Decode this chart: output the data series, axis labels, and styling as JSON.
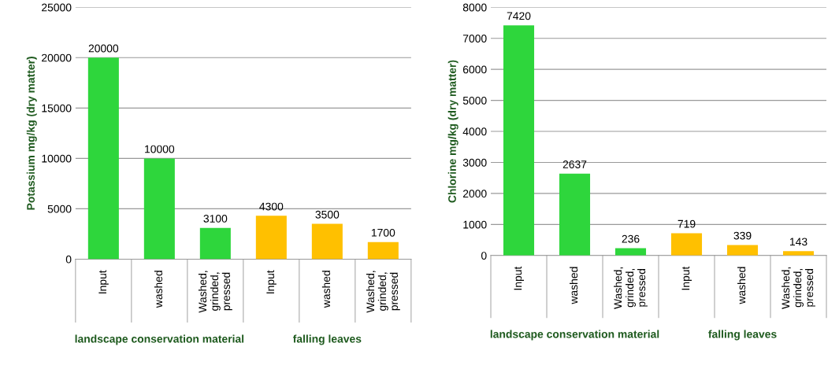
{
  "chart_data": [
    {
      "type": "bar",
      "ylabel": "Potassium mg/kg (dry matter)",
      "categories": [
        "Input",
        "washed",
        "Washed, grinded, pressed",
        "Input",
        "washed",
        "Washed, grinded, pressed"
      ],
      "values": [
        20000,
        10000,
        3100,
        4300,
        3500,
        1700
      ],
      "colors": [
        "#2ed63c",
        "#2ed63c",
        "#2ed63c",
        "#ffc000",
        "#ffc000",
        "#ffc000"
      ],
      "ylim": [
        0,
        25000
      ],
      "yticks": [
        0,
        5000,
        10000,
        15000,
        20000,
        25000
      ],
      "grid": "y",
      "data_labels": true,
      "annotations": [
        "landscape conservation material",
        "falling leaves"
      ]
    },
    {
      "type": "bar",
      "ylabel": "Chlorine mg/kg (dry matter)",
      "categories": [
        "Input",
        "washed",
        "Washed, grinded, pressed",
        "Input",
        "washed",
        "Washed, grinded, pressed"
      ],
      "values": [
        7420,
        2637,
        236,
        719,
        339,
        143
      ],
      "colors": [
        "#2ed63c",
        "#2ed63c",
        "#2ed63c",
        "#ffc000",
        "#ffc000",
        "#ffc000"
      ],
      "ylim": [
        0,
        8000
      ],
      "yticks": [
        0,
        1000,
        2000,
        3000,
        4000,
        5000,
        6000,
        7000,
        8000
      ],
      "grid": "y",
      "data_labels": true,
      "annotations": [
        "landscape conservation material",
        "falling leaves"
      ]
    }
  ]
}
